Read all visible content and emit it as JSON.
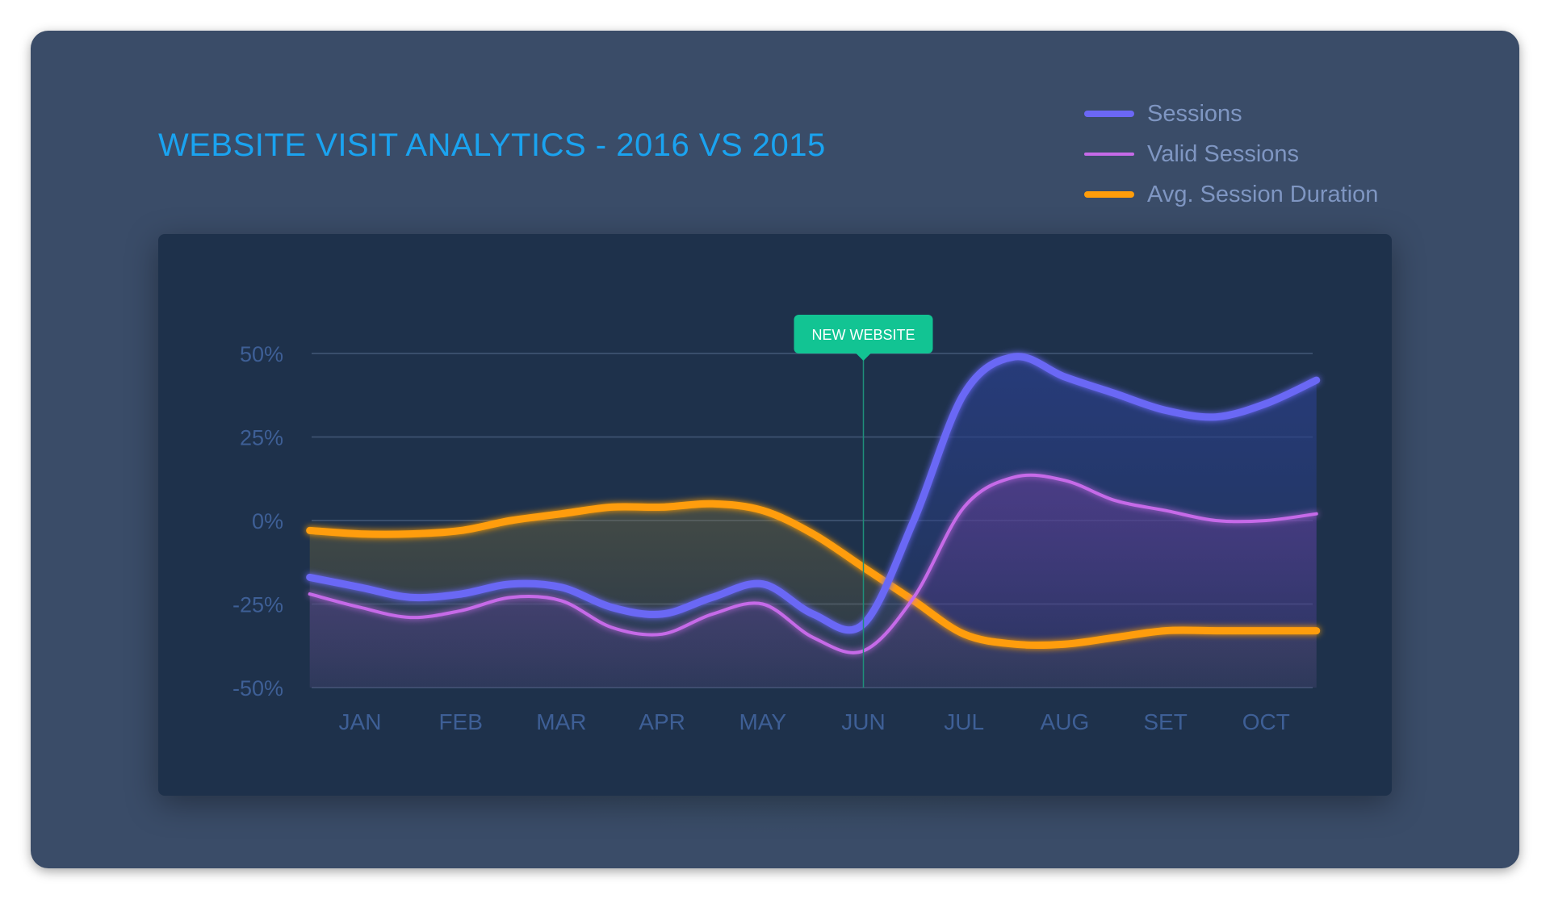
{
  "title": "WEBSITE VISIT ANALYTICS - 2016 VS 2015",
  "legend": [
    {
      "label": "Sessions",
      "color": "#6b67f5",
      "style": "thick"
    },
    {
      "label": "Valid Sessions",
      "color": "#c66ae8",
      "style": "thin"
    },
    {
      "label": "Avg. Session Duration",
      "color": "#ff9d0a",
      "style": "thick"
    }
  ],
  "annotation": {
    "label": "NEW WEBSITE",
    "x": 5,
    "color": "#12c493"
  },
  "chart_data": {
    "type": "line",
    "title": "WEBSITE VISIT ANALYTICS - 2016 VS 2015",
    "categories": [
      "JAN",
      "FEB",
      "MAR",
      "APR",
      "MAY",
      "JUN",
      "JUL",
      "AUG",
      "SET",
      "OCT"
    ],
    "y_ticks": [
      "50%",
      "25%",
      "0%",
      "-25%",
      "-50%"
    ],
    "ylim": [
      -50,
      50
    ],
    "grid": true,
    "legend_position": "top-right",
    "series": [
      {
        "name": "Sessions",
        "color": "#6b67f5",
        "points": [
          [
            -0.5,
            -17
          ],
          [
            0,
            -20
          ],
          [
            0.5,
            -23
          ],
          [
            1,
            -22
          ],
          [
            1.5,
            -19
          ],
          [
            2,
            -20
          ],
          [
            2.5,
            -26
          ],
          [
            3,
            -28
          ],
          [
            3.5,
            -23
          ],
          [
            4,
            -19
          ],
          [
            4.5,
            -28
          ],
          [
            5,
            -31
          ],
          [
            5.5,
            0
          ],
          [
            6,
            38
          ],
          [
            6.5,
            49
          ],
          [
            7,
            43
          ],
          [
            7.5,
            38
          ],
          [
            8,
            33
          ],
          [
            8.5,
            31
          ],
          [
            9,
            35
          ],
          [
            9.5,
            42
          ]
        ]
      },
      {
        "name": "Valid Sessions",
        "color": "#c66ae8",
        "points": [
          [
            -0.5,
            -22
          ],
          [
            0,
            -26
          ],
          [
            0.5,
            -29
          ],
          [
            1,
            -27
          ],
          [
            1.5,
            -23
          ],
          [
            2,
            -24
          ],
          [
            2.5,
            -32
          ],
          [
            3,
            -34
          ],
          [
            3.5,
            -28
          ],
          [
            4,
            -25
          ],
          [
            4.5,
            -35
          ],
          [
            5,
            -39
          ],
          [
            5.5,
            -23
          ],
          [
            6,
            4
          ],
          [
            6.5,
            13
          ],
          [
            7,
            12
          ],
          [
            7.5,
            6
          ],
          [
            8,
            3
          ],
          [
            8.5,
            0
          ],
          [
            9,
            0
          ],
          [
            9.5,
            2
          ]
        ]
      },
      {
        "name": "Avg. Session Duration",
        "color": "#ff9d0a",
        "points": [
          [
            -0.5,
            -3
          ],
          [
            0,
            -4
          ],
          [
            0.5,
            -4
          ],
          [
            1,
            -3
          ],
          [
            1.5,
            0
          ],
          [
            2,
            2
          ],
          [
            2.5,
            4
          ],
          [
            3,
            4
          ],
          [
            3.5,
            5
          ],
          [
            4,
            3
          ],
          [
            4.5,
            -4
          ],
          [
            5,
            -14
          ],
          [
            5.5,
            -24
          ],
          [
            6,
            -34
          ],
          [
            6.5,
            -37
          ],
          [
            7,
            -37
          ],
          [
            7.5,
            -35
          ],
          [
            8,
            -33
          ],
          [
            8.5,
            -33
          ],
          [
            9,
            -33
          ],
          [
            9.5,
            -33
          ]
        ]
      }
    ]
  }
}
